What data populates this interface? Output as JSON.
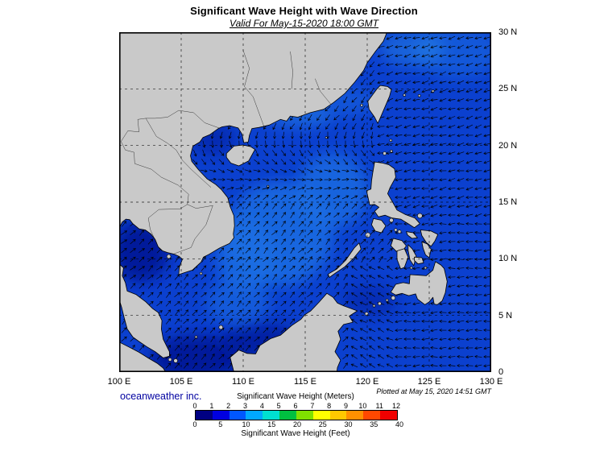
{
  "header": {
    "title": "Significant Wave Height with Wave Direction",
    "subtitle": "Valid For May-15-2020 18:00 GMT"
  },
  "axes": {
    "lon": {
      "ticks": [
        {
          "value": 100,
          "label": "100 E"
        },
        {
          "value": 105,
          "label": "105 E"
        },
        {
          "value": 110,
          "label": "110 E"
        },
        {
          "value": 115,
          "label": "115 E"
        },
        {
          "value": 120,
          "label": "120 E"
        },
        {
          "value": 125,
          "label": "125 E"
        },
        {
          "value": 130,
          "label": "130 E"
        }
      ]
    },
    "lat": {
      "ticks": [
        {
          "value": 30,
          "label": "30 N"
        },
        {
          "value": 25,
          "label": "25 N"
        },
        {
          "value": 20,
          "label": "20 N"
        },
        {
          "value": 15,
          "label": "15 N"
        },
        {
          "value": 10,
          "label": "10 N"
        },
        {
          "value": 5,
          "label": "5 N"
        },
        {
          "value": 0,
          "label": "0"
        }
      ]
    }
  },
  "legend": {
    "title_meters": "Significant Wave Height (Meters)",
    "title_feet": "Significant Wave Height (Feet)",
    "meter_ticks": [
      0,
      1,
      2,
      3,
      4,
      5,
      6,
      7,
      8,
      9,
      10,
      11,
      12
    ],
    "feet_ticks": [
      0,
      5,
      10,
      15,
      20,
      25,
      30,
      35,
      40
    ],
    "colors": [
      "#000082",
      "#0000e0",
      "#0057ff",
      "#00a8ff",
      "#00e0d0",
      "#00c040",
      "#80e000",
      "#ffff00",
      "#ffc800",
      "#ff9000",
      "#ff4800",
      "#f00000"
    ]
  },
  "footer": {
    "credit": "oceanweather inc.",
    "plotted": "Plotted at May 15, 2020 14:51 GMT"
  },
  "map": {
    "lon_range": [
      100,
      130
    ],
    "lat_range": [
      0,
      30
    ],
    "palette": {
      "land": "#c9c9c9",
      "coast": "#000000",
      "ocean_base": "#0b40cf",
      "ocean_calm": "#021295",
      "ocean_moderate": "#1a6fe3",
      "ocean_light": "#35a0ee",
      "grid": "#000000",
      "arrow": "#000000",
      "frame": "#000000"
    }
  },
  "chart_data": {
    "type": "heatmap",
    "title": "Significant Wave Height with Wave Direction",
    "valid_time": "May-15-2020 18:00 GMT",
    "x_range_deg_east": [
      100,
      130
    ],
    "y_range_deg_north": [
      0,
      30
    ],
    "unit": "meters",
    "scale_range_m": [
      0,
      12
    ],
    "observed_values_m": [
      {
        "region": "East China Sea / northeast of Taiwan",
        "value": "1-2"
      },
      {
        "region": "Philippine Sea east of Luzon",
        "value": "1-2"
      },
      {
        "region": "Central South China Sea",
        "value": "2-3"
      },
      {
        "region": "Coastal south Vietnam",
        "value": "2-3"
      },
      {
        "region": "Gulf of Thailand",
        "value": "0-1"
      },
      {
        "region": "Gulf of Tonkin",
        "value": "0-1"
      },
      {
        "region": "Karimata Strait / far south",
        "value": "0-1"
      },
      {
        "region": "Sulu Sea",
        "value": "1-2"
      }
    ],
    "direction_summary": "Arrows: westward-propagating waves over the Pacific and East China Sea; northeastward propagation over the southern South China Sea and Gulf of Thailand"
  }
}
